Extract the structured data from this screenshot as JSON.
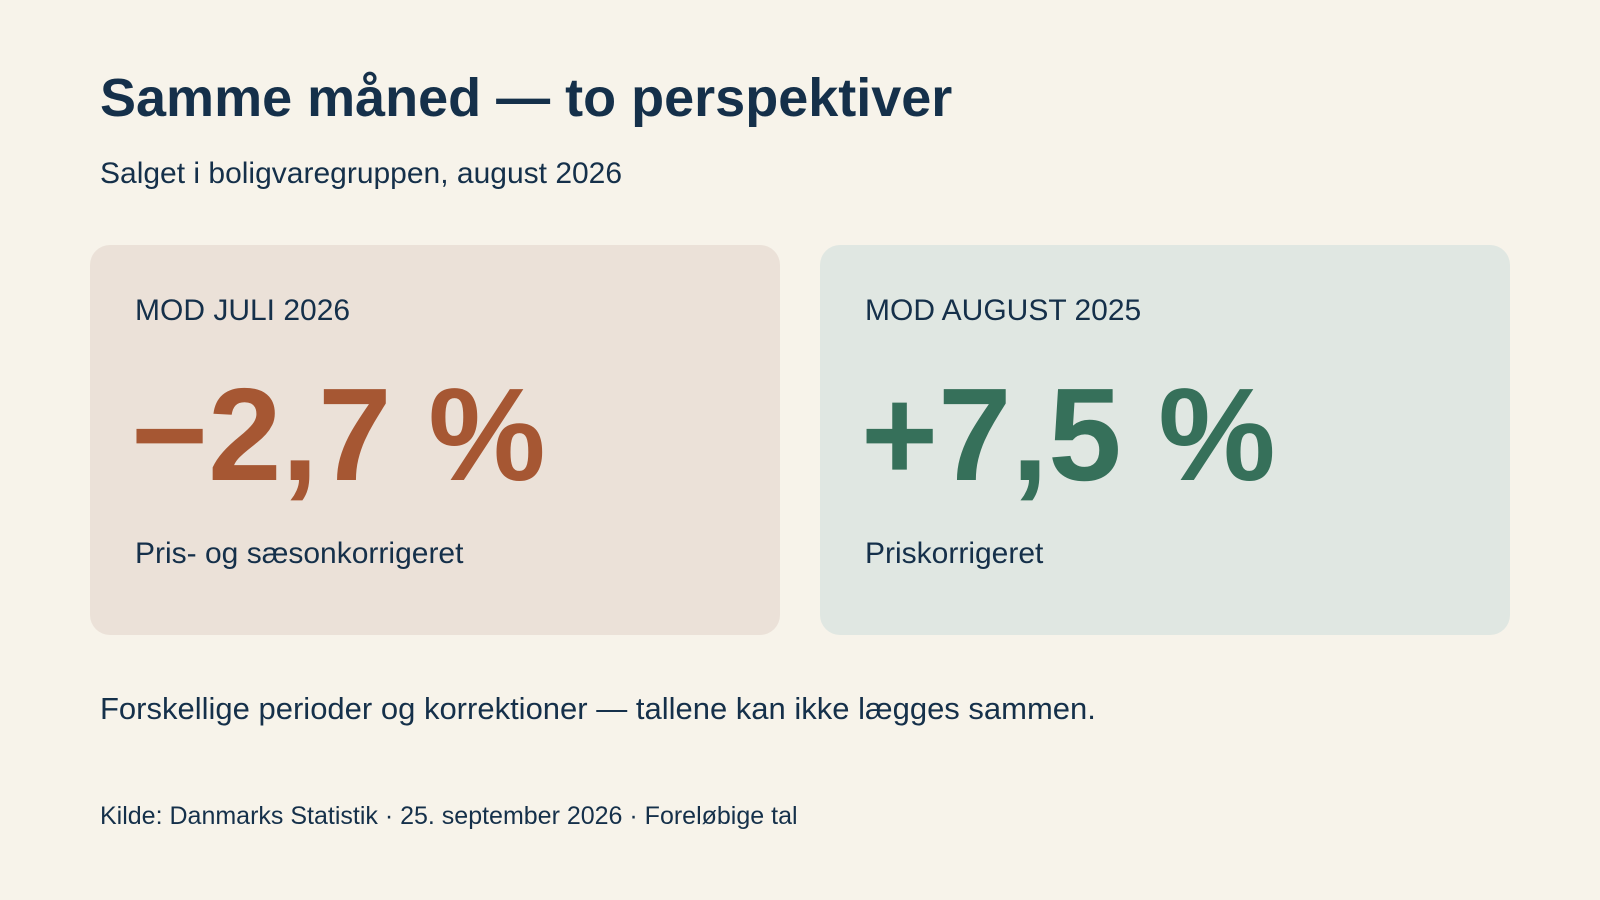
{
  "header": {
    "title": "Samme måned — to perspektiver",
    "subtitle": "Salget i boligvaregruppen, august 2026"
  },
  "cards": [
    {
      "label": "MOD JULI 2026",
      "value": "−2,7 %",
      "note": "Pris- og sæsonkorrigeret",
      "value_color": "#a65733",
      "background": "#ebe1d8"
    },
    {
      "label": "MOD AUGUST 2025",
      "value": "+7,5 %",
      "note": "Priskorrigeret",
      "value_color": "#36705a",
      "background": "#e0e7e2"
    }
  ],
  "caveat": "Forskellige perioder og korrektioner — tallene kan ikke lægges sammen.",
  "source": "Kilde: Danmarks Statistik · 25. september 2026 · Foreløbige tal",
  "colors": {
    "page_background": "#f7f3ea",
    "text": "#15304a"
  }
}
